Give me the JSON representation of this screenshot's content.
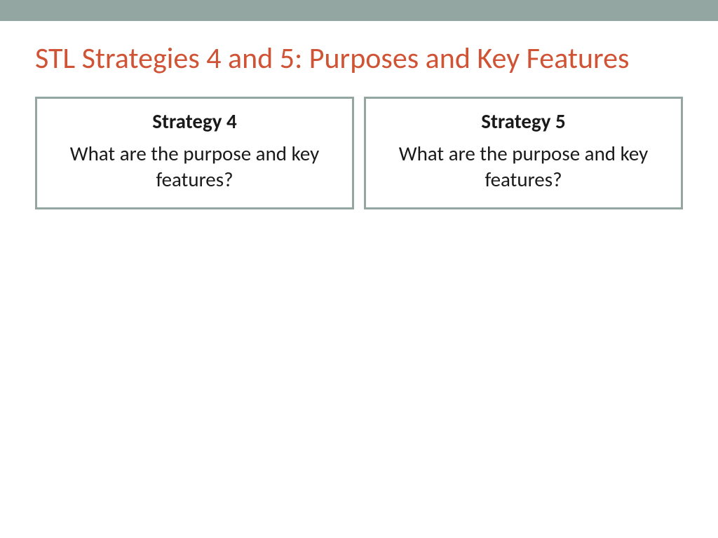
{
  "layout": {
    "top_bar_color": "#94a6a1",
    "background_color": "#ffffff",
    "title_color": "#cf5334",
    "box_border_color": "#94a6a1",
    "box_border_width": 3,
    "text_color": "#1a1a1a",
    "title_fontsize": 42,
    "box_heading_fontsize": 29,
    "box_body_fontsize": 29
  },
  "title": "STL Strategies 4 and 5: Purposes and Key Features",
  "boxes": [
    {
      "heading": "Strategy 4",
      "question": "What are the purpose and key features?"
    },
    {
      "heading": "Strategy 5",
      "question": "What are the purpose and key features?"
    }
  ]
}
